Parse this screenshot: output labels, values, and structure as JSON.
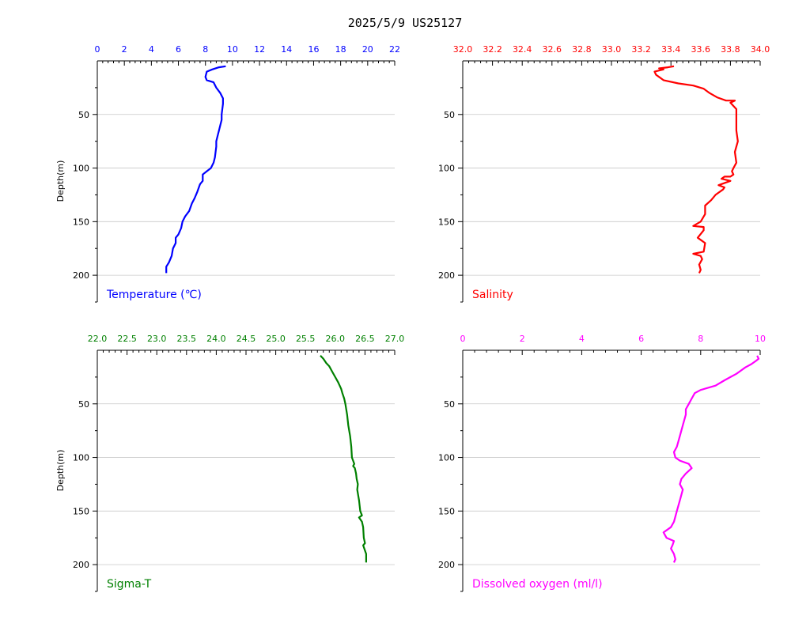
{
  "title": "2025/5/9  US25127",
  "chart_data": [
    {
      "type": "line",
      "label": "Temperature (℃)",
      "color": "#0000ff",
      "xlim": [
        0,
        22
      ],
      "xticks": [
        0,
        2,
        4,
        6,
        8,
        10,
        12,
        14,
        16,
        18,
        20,
        22
      ],
      "xtick_labels": [
        "0",
        "2",
        "4",
        "6",
        "8",
        "10",
        "12",
        "14",
        "16",
        "18",
        "20",
        "22"
      ],
      "ylabel": "Depth(m)",
      "ylim": [
        0,
        225
      ],
      "yticks": [
        50,
        100,
        150,
        200
      ],
      "ytick_labels": [
        "50",
        "100",
        "150",
        "200"
      ],
      "grid": "horizontal",
      "x": [
        9.5,
        9.0,
        8.5,
        8.1,
        8.0,
        8.1,
        8.6,
        8.8,
        9.1,
        9.3,
        9.3,
        9.2,
        9.2,
        9.1,
        9.0,
        8.9,
        8.8,
        8.8,
        8.7,
        8.6,
        8.4,
        8.1,
        7.8,
        7.8,
        7.6,
        7.4,
        7.2,
        7.0,
        6.8,
        6.5,
        6.3,
        6.2,
        6.0,
        5.8,
        5.8,
        5.6,
        5.5,
        5.3,
        5.1,
        5.1
      ],
      "y": [
        5,
        6,
        8,
        10,
        15,
        18,
        20,
        25,
        30,
        35,
        40,
        50,
        55,
        60,
        65,
        70,
        75,
        80,
        90,
        95,
        100,
        103,
        106,
        112,
        115,
        122,
        128,
        133,
        140,
        145,
        150,
        156,
        162,
        165,
        170,
        175,
        182,
        188,
        192,
        198
      ]
    },
    {
      "type": "line",
      "label": "Salinity",
      "color": "#ff0000",
      "xlim": [
        32.0,
        34.0
      ],
      "xticks": [
        32.0,
        32.2,
        32.4,
        32.6,
        32.8,
        33.0,
        33.2,
        33.4,
        33.6,
        33.8,
        34.0
      ],
      "xtick_labels": [
        "32.0",
        "32.2",
        "32.4",
        "32.6",
        "32.8",
        "33.0",
        "33.2",
        "33.4",
        "33.6",
        "33.8",
        "34.0"
      ],
      "ylabel": "",
      "ylim": [
        0,
        225
      ],
      "yticks": [
        50,
        100,
        150,
        200
      ],
      "ytick_labels": [
        "50",
        "100",
        "150",
        "200"
      ],
      "grid": "horizontal",
      "x": [
        33.42,
        33.38,
        33.32,
        33.35,
        33.29,
        33.3,
        33.32,
        33.35,
        33.45,
        33.55,
        33.62,
        33.66,
        33.71,
        33.77,
        33.83,
        33.8,
        33.84,
        33.84,
        33.84,
        33.85,
        33.83,
        33.84,
        33.82,
        33.81,
        33.82,
        33.8,
        33.76,
        33.74,
        33.8,
        33.72,
        33.76,
        33.75,
        33.7,
        33.67,
        33.63,
        33.63,
        33.6,
        33.55,
        33.62,
        33.62,
        33.58,
        33.63,
        33.62,
        33.55,
        33.6,
        33.61,
        33.59,
        33.6,
        33.59
      ],
      "y": [
        5,
        6,
        7,
        8,
        10,
        13,
        15,
        18,
        21,
        23,
        26,
        30,
        34,
        37,
        37,
        39,
        45,
        55,
        65,
        75,
        85,
        95,
        100,
        103,
        106,
        108,
        108,
        110,
        112,
        116,
        118,
        120,
        125,
        130,
        135,
        143,
        150,
        154,
        155,
        158,
        165,
        170,
        178,
        180,
        182,
        185,
        190,
        195,
        198
      ]
    },
    {
      "type": "line",
      "label": "Sigma-T",
      "color": "#008000",
      "xlim": [
        22.0,
        27.0
      ],
      "xticks": [
        22.0,
        22.5,
        23.0,
        23.5,
        24.0,
        24.5,
        25.0,
        25.5,
        26.0,
        26.5,
        27.0
      ],
      "xtick_labels": [
        "22.0",
        "22.5",
        "23.0",
        "23.5",
        "24.0",
        "24.5",
        "25.0",
        "25.5",
        "26.0",
        "26.5",
        "27.0"
      ],
      "ylabel": "Depth(m)",
      "ylim": [
        0,
        225
      ],
      "yticks": [
        50,
        100,
        150,
        200
      ],
      "ytick_labels": [
        "50",
        "100",
        "150",
        "200"
      ],
      "grid": "horizontal",
      "x": [
        25.75,
        25.8,
        25.85,
        25.9,
        25.95,
        26.0,
        26.05,
        26.1,
        26.12,
        26.15,
        26.17,
        26.2,
        26.22,
        26.25,
        26.27,
        26.28,
        26.3,
        26.32,
        26.3,
        26.33,
        26.35,
        26.36,
        26.38,
        26.37,
        26.4,
        26.42,
        26.45,
        26.4,
        26.45,
        26.47,
        26.48,
        26.5,
        26.47,
        26.52,
        26.52
      ],
      "y": [
        5,
        8,
        12,
        15,
        20,
        25,
        30,
        36,
        40,
        45,
        50,
        60,
        70,
        80,
        90,
        100,
        103,
        106,
        108,
        110,
        115,
        120,
        125,
        130,
        140,
        150,
        154,
        156,
        160,
        165,
        175,
        180,
        182,
        190,
        198
      ]
    },
    {
      "type": "line",
      "label": "Dissolved oxygen (ml/l)",
      "color": "#ff00ff",
      "xlim": [
        0,
        10
      ],
      "xticks": [
        0,
        2,
        4,
        6,
        8,
        10
      ],
      "xtick_labels": [
        "0",
        "2",
        "4",
        "6",
        "8",
        "10"
      ],
      "ylabel": "",
      "ylim": [
        0,
        225
      ],
      "yticks": [
        50,
        100,
        150,
        200
      ],
      "ytick_labels": [
        "50",
        "100",
        "150",
        "200"
      ],
      "grid": "horizontal",
      "x": [
        9.9,
        9.95,
        9.85,
        9.7,
        9.5,
        9.3,
        9.2,
        9.0,
        8.8,
        8.5,
        8.0,
        7.8,
        7.7,
        7.6,
        7.5,
        7.5,
        7.4,
        7.3,
        7.2,
        7.1,
        7.15,
        7.3,
        7.6,
        7.7,
        7.5,
        7.35,
        7.3,
        7.4,
        7.3,
        7.2,
        7.1,
        7.0,
        6.85,
        6.75,
        6.85,
        7.1,
        7.05,
        7.0,
        7.1,
        7.15,
        7.1
      ],
      "y": [
        5,
        8,
        10,
        13,
        16,
        20,
        22,
        25,
        28,
        33,
        37,
        40,
        45,
        50,
        55,
        60,
        70,
        80,
        90,
        95,
        100,
        103,
        106,
        110,
        115,
        120,
        125,
        130,
        140,
        150,
        160,
        165,
        168,
        170,
        175,
        178,
        182,
        185,
        190,
        195,
        198
      ]
    }
  ]
}
